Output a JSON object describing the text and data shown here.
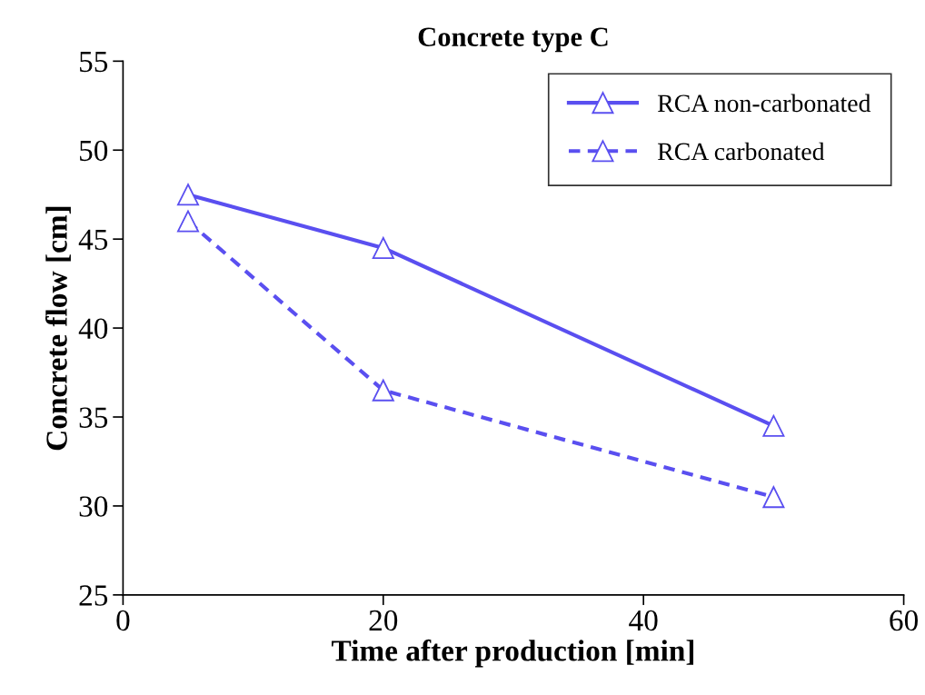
{
  "chart_data": {
    "type": "line",
    "title": "Concrete type C",
    "xlabel": "Time after production [min]",
    "ylabel": "Concrete flow [cm]",
    "x": [
      5,
      20,
      50
    ],
    "series": [
      {
        "name": "RCA non-carbonated",
        "color": "#5a4ff0",
        "values": [
          47.5,
          44.5,
          34.5
        ],
        "line_style": "solid"
      },
      {
        "name": "RCA carbonated",
        "color": "#5a4ff0",
        "values": [
          46,
          36.5,
          30.5
        ],
        "line_style": "dashed"
      }
    ],
    "xlim": [
      0,
      60
    ],
    "xticks": [
      0,
      20,
      40,
      60
    ],
    "ylim": [
      25,
      55
    ],
    "yticks": [
      25,
      30,
      35,
      40,
      45,
      50,
      55
    ],
    "marker": "triangle",
    "grid": false,
    "legend": "top right"
  }
}
